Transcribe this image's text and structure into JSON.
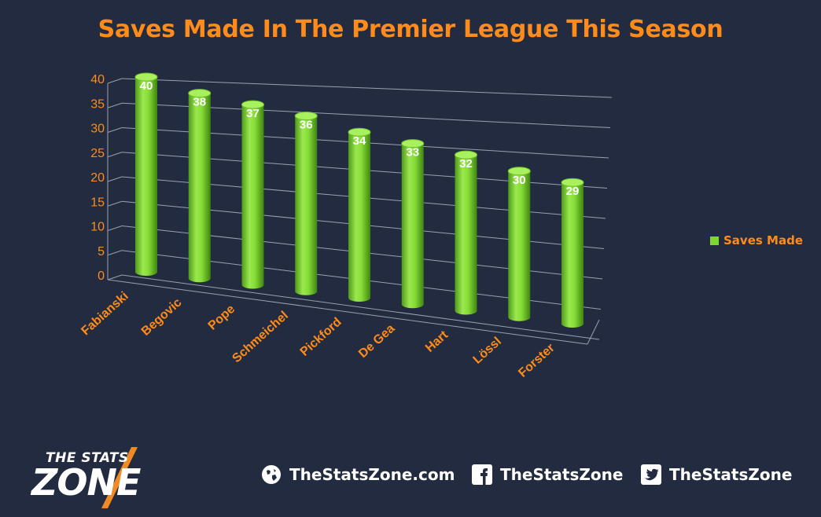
{
  "chart_data": {
    "type": "bar",
    "title": "Saves Made In The Premier League This Season",
    "categories": [
      "Fabianski",
      "Begovic",
      "Pope",
      "Schmeichel",
      "Pickford",
      "De Gea",
      "Hart",
      "Lössl",
      "Forster"
    ],
    "series": [
      {
        "name": "Saves Made",
        "values": [
          40,
          38,
          37,
          36,
          34,
          33,
          32,
          30,
          29
        ]
      }
    ],
    "ylim": [
      0,
      40
    ],
    "yticks": [
      0,
      5,
      10,
      15,
      20,
      25,
      30,
      35,
      40
    ],
    "grid": true,
    "legend": "right",
    "style": "3d-cylinder",
    "colors": {
      "bar": "#7fd630",
      "title": "#ff8c1a",
      "labels": "#ff8c1a",
      "background": "#222b40"
    }
  },
  "footer": {
    "logo_top": "THE STATS",
    "logo_bottom": "ZONE",
    "website": "TheStatsZone.com",
    "facebook": "TheStatsZone",
    "twitter": "TheStatsZone"
  }
}
